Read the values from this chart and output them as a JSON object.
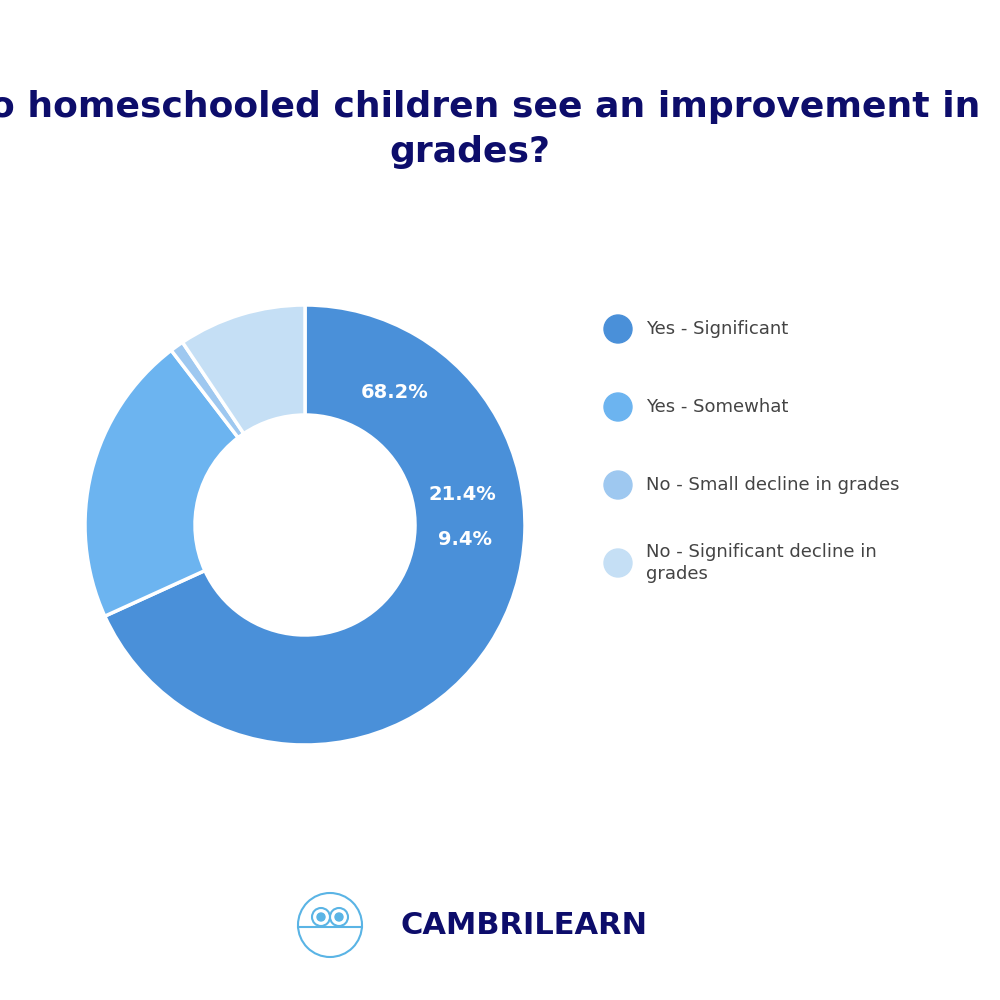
{
  "title": "Do homeschooled children see an improvement in\ngrades?",
  "title_color": "#0d0d6b",
  "title_fontsize": 26,
  "slices": [
    68.2,
    21.4,
    1.0,
    9.4
  ],
  "colors": [
    "#4a90d9",
    "#6cb4f0",
    "#9ec8f0",
    "#c5dff5"
  ],
  "labels": [
    "68.2%",
    "21.4%",
    "",
    "9.4%"
  ],
  "legend_labels": [
    "Yes - Significant",
    "Yes - Somewhat",
    "No - Small decline in grades",
    "No - Significant decline in\ngrades"
  ],
  "legend_fontsize": 13,
  "label_fontsize": 14,
  "background_color": "#ffffff",
  "brand_text": "CAMBRILEARN",
  "brand_color": "#0d0d6b",
  "brand_fontsize": 22
}
